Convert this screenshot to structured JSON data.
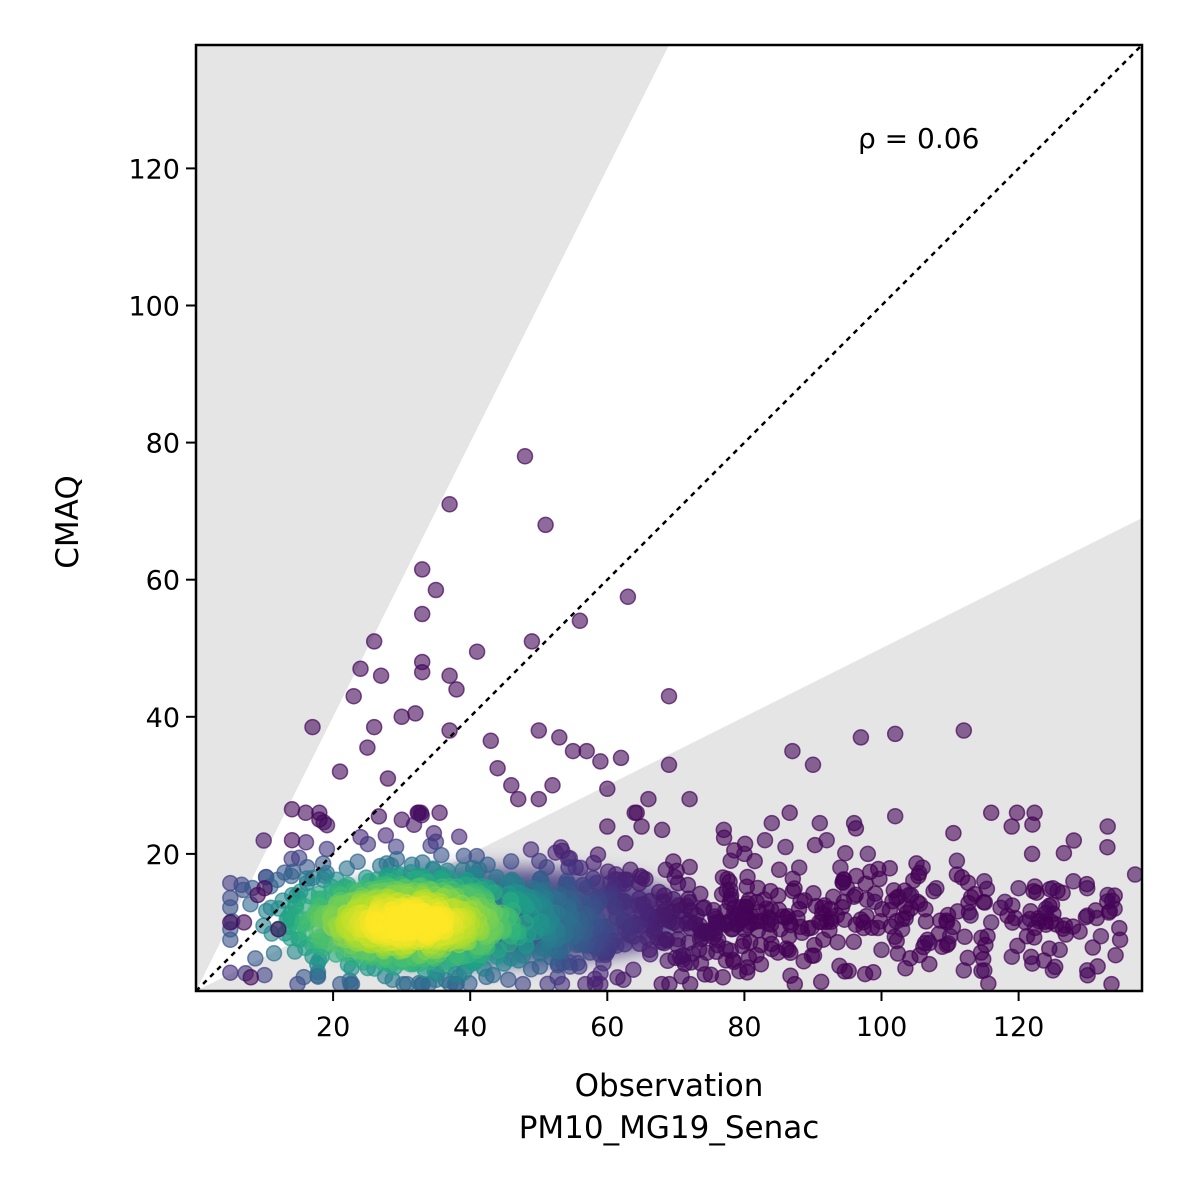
{
  "chart_data": {
    "type": "scatter",
    "title": "",
    "xlabel": "Observation",
    "xlabel2": "PM10_MG19_Senac",
    "ylabel": "CMAQ",
    "xlim": [
      0,
      138
    ],
    "ylim": [
      0,
      138
    ],
    "xticks": [
      20,
      40,
      60,
      80,
      100,
      120
    ],
    "yticks": [
      20,
      40,
      60,
      80,
      100,
      120
    ],
    "annotation": "ρ = 0.06",
    "reference_line": "1:1",
    "shaded_bands": [
      {
        "from_slope": 2.0,
        "to_slope": 100
      },
      {
        "from_slope": 0.0,
        "to_slope": 0.5
      }
    ],
    "colormap": "viridis (point density)",
    "colors": {
      "low_density": "#440154",
      "high_density": "#fde725",
      "band": "#e5e5e5"
    },
    "outlier_points": [
      [
        48,
        78
      ],
      [
        37,
        71
      ],
      [
        51,
        68
      ],
      [
        33,
        61.5
      ],
      [
        35,
        58.5
      ],
      [
        63,
        57.5
      ],
      [
        33,
        55
      ],
      [
        56,
        54
      ],
      [
        26,
        51
      ],
      [
        49,
        51
      ],
      [
        41,
        49.5
      ],
      [
        24,
        47
      ],
      [
        27,
        46
      ],
      [
        33,
        48
      ],
      [
        33,
        46.5
      ],
      [
        37,
        46
      ],
      [
        23,
        43
      ],
      [
        38,
        44
      ],
      [
        69,
        43
      ],
      [
        17,
        38.5
      ],
      [
        30,
        40
      ],
      [
        32,
        40.5
      ],
      [
        26,
        38.5
      ],
      [
        50,
        38
      ],
      [
        37,
        38
      ],
      [
        112,
        38
      ],
      [
        102,
        37.5
      ],
      [
        97,
        37
      ],
      [
        53,
        37
      ],
      [
        87,
        35
      ],
      [
        25,
        35.5
      ],
      [
        43,
        36.5
      ],
      [
        55,
        35
      ],
      [
        57,
        35
      ],
      [
        62,
        34
      ],
      [
        59,
        33.5
      ],
      [
        69,
        33
      ],
      [
        90,
        33
      ],
      [
        21,
        32
      ],
      [
        44,
        32.5
      ],
      [
        28,
        31
      ],
      [
        46,
        30
      ],
      [
        52,
        30
      ],
      [
        60,
        29.5
      ],
      [
        47,
        28
      ],
      [
        50,
        28
      ],
      [
        72,
        28
      ],
      [
        66,
        28
      ],
      [
        14,
        26.5
      ],
      [
        64,
        26
      ],
      [
        102,
        25.5
      ],
      [
        84,
        24.5
      ],
      [
        91,
        24.5
      ],
      [
        96,
        24.5
      ],
      [
        133,
        24
      ],
      [
        77,
        23.5
      ],
      [
        60,
        24
      ],
      [
        65,
        24
      ],
      [
        68,
        23.5
      ],
      [
        14,
        22
      ],
      [
        83,
        22
      ],
      [
        18,
        25
      ],
      [
        16,
        26
      ],
      [
        120,
        15
      ],
      [
        125,
        15
      ],
      [
        130,
        15
      ],
      [
        133,
        14
      ],
      [
        137,
        17
      ],
      [
        128,
        16
      ],
      [
        118,
        13
      ],
      [
        124,
        12
      ],
      [
        130,
        11
      ],
      [
        134,
        12
      ],
      [
        132,
        8
      ],
      [
        125,
        3
      ],
      [
        130,
        3
      ],
      [
        119,
        5
      ],
      [
        115,
        3
      ],
      [
        112,
        3
      ],
      [
        110,
        8
      ],
      [
        107,
        7
      ],
      [
        100,
        6
      ],
      [
        126,
        6
      ],
      [
        122,
        4
      ],
      [
        108,
        15
      ],
      [
        104,
        14
      ],
      [
        106,
        18
      ],
      [
        111,
        19
      ],
      [
        115,
        16
      ],
      [
        98,
        20
      ],
      [
        94,
        18
      ],
      [
        86,
        21
      ],
      [
        88,
        18
      ],
      [
        92,
        22
      ],
      [
        80,
        20
      ],
      [
        78,
        19
      ],
      [
        5,
        10
      ],
      [
        7,
        10
      ],
      [
        8,
        2
      ],
      [
        9,
        14
      ],
      [
        10,
        15
      ],
      [
        12,
        9
      ],
      [
        121,
        10
      ],
      [
        116,
        10
      ],
      [
        113,
        11
      ],
      [
        103,
        9
      ],
      [
        99,
        13
      ],
      [
        95,
        15
      ]
    ],
    "point_cloud": {
      "description": "dense cluster of ~thousands of observations",
      "center": [
        31,
        10
      ],
      "x_range": [
        5,
        137
      ],
      "y_range": [
        1,
        26
      ]
    }
  }
}
